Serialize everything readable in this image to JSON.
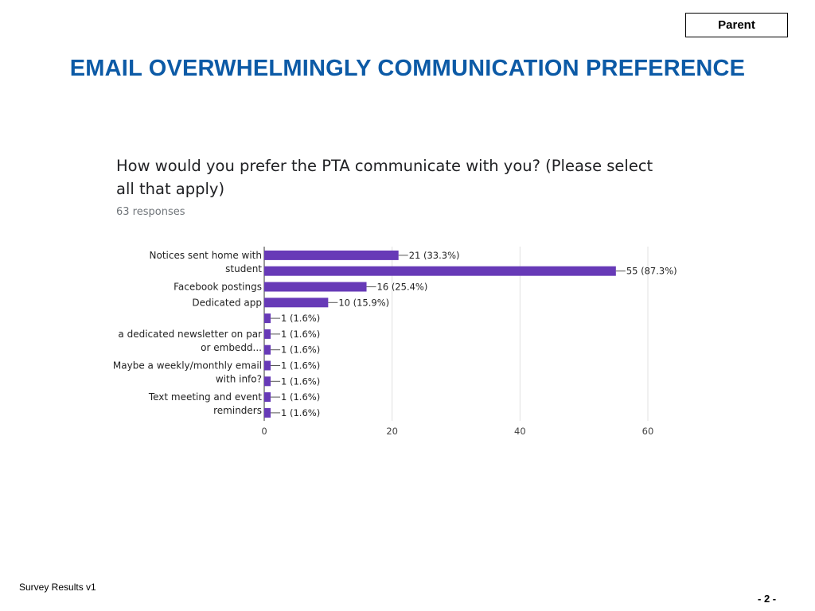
{
  "slide": {
    "tag": "Parent",
    "title": "EMAIL OVERWHELMINGLY COMMUNICATION PREFERENCE",
    "title_color": "#0c5aa6",
    "footer_left": "Survey Results v1",
    "page_number": "- 2 -"
  },
  "question": {
    "title": "How would you prefer the PTA communicate with you? (Please select all that apply)",
    "responses": "63 responses"
  },
  "chart_data": {
    "type": "bar",
    "orientation": "horizontal",
    "bar_color": "#673ab7",
    "xlim": [
      0,
      60
    ],
    "xticks": [
      "0",
      "20",
      "40",
      "60"
    ],
    "grid": true,
    "category_labels": [
      {
        "lines": [
          "Notices sent home with",
          "student"
        ]
      },
      {
        "lines": [
          "Facebook postings"
        ]
      },
      {
        "lines": [
          "Dedicated app"
        ]
      },
      {
        "lines": [
          "a dedicated newsletter on par",
          "or embedd..."
        ]
      },
      {
        "lines": [
          "Maybe a weekly/monthly email",
          "with info?"
        ]
      },
      {
        "lines": [
          "Text meeting and event",
          "reminders"
        ]
      }
    ],
    "values": [
      21,
      55,
      16,
      10,
      1,
      1,
      1,
      1,
      1,
      1,
      1
    ],
    "data_labels": [
      "21 (33.3%)",
      "55 (87.3%)",
      "16 (25.4%)",
      "10 (15.9%)",
      "1 (1.6%)",
      "1 (1.6%)",
      "1 (1.6%)",
      "1 (1.6%)",
      "1 (1.6%)",
      "1 (1.6%)",
      "1 (1.6%)"
    ]
  }
}
